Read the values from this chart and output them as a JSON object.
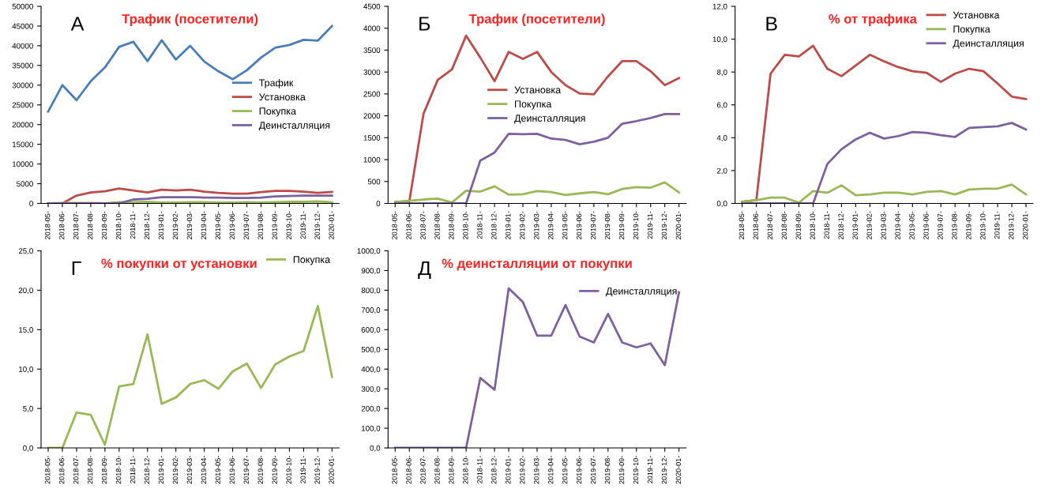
{
  "chart_data": [
    {
      "type": "line",
      "title": "Трафик (посетители)",
      "annotations": [
        "А"
      ],
      "categories": [
        "2018-05-",
        "2018-06-",
        "2018-07-",
        "2018-08-",
        "2018-09-",
        "2018-10-",
        "2018-11-",
        "2018-12-",
        "2019-01-",
        "2019-02-",
        "2019-03-",
        "2019-04-",
        "2019-05-",
        "2019-06-",
        "2019-07-",
        "2019-08-",
        "2019-09-",
        "2019-10-",
        "2019-11-",
        "2019-12-",
        "2020-01-"
      ],
      "series": [
        {
          "name": "Трафик",
          "color": "#4a7ebb",
          "values": [
            23300,
            30000,
            26200,
            31000,
            34500,
            39700,
            41000,
            36100,
            41400,
            36500,
            40000,
            36000,
            33500,
            31500,
            33800,
            37000,
            39500,
            40200,
            41500,
            41300,
            45000
          ]
        },
        {
          "name": "Установка",
          "color": "#be4b48",
          "values": [
            0,
            0,
            2000,
            2800,
            3100,
            3800,
            3300,
            2800,
            3500,
            3300,
            3500,
            3000,
            2700,
            2500,
            2500,
            2900,
            3200,
            3200,
            3000,
            2700,
            2900
          ]
        },
        {
          "name": "Покупка",
          "color": "#98b954",
          "values": [
            0,
            100,
            100,
            100,
            0,
            300,
            300,
            400,
            200,
            200,
            300,
            300,
            200,
            200,
            300,
            200,
            300,
            400,
            400,
            500,
            300
          ]
        },
        {
          "name": "Деинсталляция",
          "color": "#7d60a0",
          "values": [
            0,
            0,
            0,
            0,
            0,
            0,
            1000,
            1200,
            1600,
            1600,
            1600,
            1500,
            1500,
            1400,
            1400,
            1500,
            1800,
            1900,
            2000,
            2000,
            2000
          ]
        }
      ],
      "ylim": [
        0,
        50000
      ],
      "yticks": [
        0,
        5000,
        10000,
        15000,
        20000,
        25000,
        30000,
        35000,
        40000,
        45000,
        50000
      ],
      "grid": false,
      "legend": "right"
    },
    {
      "type": "line",
      "title": "Трафик (посетители)",
      "annotations": [
        "Б"
      ],
      "categories": [
        "2018-05-",
        "2018-06-",
        "2018-07-",
        "2018-08-",
        "2018-09-",
        "2018-10-",
        "2018-11-",
        "2018-12-",
        "2019-01-",
        "2019-02-",
        "2019-03-",
        "2019-04-",
        "2019-05-",
        "2019-06-",
        "2019-07-",
        "2019-08-",
        "2019-09-",
        "2019-10-",
        "2019-11-",
        "2019-12-",
        "2020-01-"
      ],
      "series": [
        {
          "name": "Установка",
          "color": "#be4b48",
          "values": [
            30,
            50,
            2050,
            2820,
            3060,
            3830,
            3330,
            2790,
            3460,
            3300,
            3460,
            3000,
            2700,
            2510,
            2490,
            2900,
            3250,
            3250,
            3020,
            2700,
            2860
          ]
        },
        {
          "name": "Покупка",
          "color": "#98b954",
          "values": [
            30,
            60,
            90,
            110,
            20,
            290,
            270,
            390,
            200,
            210,
            280,
            260,
            190,
            230,
            260,
            210,
            330,
            370,
            360,
            480,
            250
          ]
        },
        {
          "name": "Деинсталляция",
          "color": "#7d60a0",
          "values": [
            0,
            0,
            0,
            0,
            0,
            0,
            980,
            1160,
            1590,
            1580,
            1590,
            1480,
            1450,
            1350,
            1410,
            1500,
            1820,
            1880,
            1950,
            2040,
            2040
          ]
        }
      ],
      "ylim": [
        0,
        4500
      ],
      "yticks": [
        0,
        500,
        1000,
        1500,
        2000,
        2500,
        3000,
        3500,
        4000,
        4500
      ],
      "grid": false,
      "legend": "center"
    },
    {
      "type": "line",
      "title": "% от трафика",
      "annotations": [
        "В"
      ],
      "categories": [
        "2018-05-",
        "2018-06-",
        "2018-07-",
        "2018-08-",
        "2018-09-",
        "2018-10-",
        "2018-11-",
        "2018-12-",
        "2019-01-",
        "2019-02-",
        "2019-03-",
        "2019-04-",
        "2019-05-",
        "2019-06-",
        "2019-07-",
        "2019-08-",
        "2019-09-",
        "2019-10-",
        "2019-11-",
        "2019-12-",
        "2020-01-"
      ],
      "series": [
        {
          "name": "Установка",
          "color": "#be4b48",
          "values": [
            0.1,
            0.2,
            7.9,
            9.05,
            8.95,
            9.6,
            8.2,
            7.75,
            8.4,
            9.05,
            8.65,
            8.3,
            8.05,
            7.95,
            7.4,
            7.9,
            8.2,
            8.05,
            7.3,
            6.5,
            6.35
          ]
        },
        {
          "name": "Покупка",
          "color": "#98b954",
          "values": [
            0.1,
            0.2,
            0.35,
            0.35,
            0.05,
            0.75,
            0.65,
            1.1,
            0.5,
            0.55,
            0.65,
            0.65,
            0.55,
            0.7,
            0.75,
            0.55,
            0.85,
            0.9,
            0.9,
            1.15,
            0.55
          ]
        },
        {
          "name": "Деинсталляция",
          "color": "#7d60a0",
          "values": [
            0,
            0,
            0,
            0,
            0,
            0,
            2.4,
            3.3,
            3.9,
            4.3,
            3.95,
            4.1,
            4.35,
            4.3,
            4.15,
            4.05,
            4.6,
            4.65,
            4.7,
            4.9,
            4.5
          ]
        }
      ],
      "ylim": [
        0,
        12
      ],
      "yticks": [
        {
          "value": 0,
          "label": "0,0"
        },
        {
          "value": 2,
          "label": "2,0"
        },
        {
          "value": 4,
          "label": "4,0"
        },
        {
          "value": 6,
          "label": "6,0"
        },
        {
          "value": 8,
          "label": "8,0"
        },
        {
          "value": 10,
          "label": "10,0"
        },
        {
          "value": 12,
          "label": "12,0"
        }
      ],
      "grid": false,
      "legend": "top right"
    },
    {
      "type": "line",
      "title": "% покупки от установки",
      "annotations": [
        "Г"
      ],
      "categories": [
        "2018-05-",
        "2018-06-",
        "2018-07-",
        "2018-08-",
        "2018-09-",
        "2018-10-",
        "2018-11-",
        "2018-12-",
        "2019-01-",
        "2019-02-",
        "2019-03-",
        "2019-04-",
        "2019-05-",
        "2019-06-",
        "2019-07-",
        "2019-08-",
        "2019-09-",
        "2019-10-",
        "2019-11-",
        "2019-12-",
        "2020-01-"
      ],
      "series": [
        {
          "name": "Покупка",
          "color": "#98b954",
          "values": [
            0,
            0,
            4.5,
            4.2,
            0.4,
            7.8,
            8.1,
            14.4,
            5.6,
            6.4,
            8.1,
            8.6,
            7.5,
            9.7,
            10.7,
            7.6,
            10.6,
            11.6,
            12.3,
            18.0,
            9.0
          ]
        }
      ],
      "ylim": [
        0,
        25
      ],
      "yticks": [
        {
          "value": 0,
          "label": "0,0"
        },
        {
          "value": 5,
          "label": "5,0"
        },
        {
          "value": 10,
          "label": "10,0"
        },
        {
          "value": 15,
          "label": "15,0"
        },
        {
          "value": 20,
          "label": "20,0"
        },
        {
          "value": 25,
          "label": "25,0"
        }
      ],
      "grid": false,
      "legend": "top right"
    },
    {
      "type": "line",
      "title": "% деинсталляции от покупки",
      "annotations": [
        "Д"
      ],
      "categories": [
        "2018-05-",
        "2018-06-",
        "2018-07-",
        "2018-08-",
        "2018-09-",
        "2018-10-",
        "2018-11-",
        "2018-12-",
        "2019-01-",
        "2019-02-",
        "2019-03-",
        "2019-04-",
        "2019-05-",
        "2019-06-",
        "2019-07-",
        "2019-08-",
        "2019-09-",
        "2019-10-",
        "2019-11-",
        "2019-12-",
        "2020-01-"
      ],
      "series": [
        {
          "name": "Деинсталляция",
          "color": "#7d60a0",
          "values": [
            0,
            0,
            0,
            0,
            0,
            0,
            355,
            295,
            810,
            740,
            570,
            570,
            725,
            565,
            535,
            680,
            535,
            510,
            530,
            420,
            790
          ]
        }
      ],
      "ylim": [
        0,
        1000
      ],
      "yticks": [
        {
          "value": 0,
          "label": "0,0"
        },
        {
          "value": 100,
          "label": "100,0"
        },
        {
          "value": 200,
          "label": "200,0"
        },
        {
          "value": 300,
          "label": "300,0"
        },
        {
          "value": 400,
          "label": "400,0"
        },
        {
          "value": 500,
          "label": "500,0"
        },
        {
          "value": 600,
          "label": "600,0"
        },
        {
          "value": 700,
          "label": "700,0"
        },
        {
          "value": 800,
          "label": "800,0"
        },
        {
          "value": 900,
          "label": "900,0"
        },
        {
          "value": 1000,
          "label": "1000,0"
        }
      ],
      "grid": false,
      "legend": "top right"
    }
  ]
}
